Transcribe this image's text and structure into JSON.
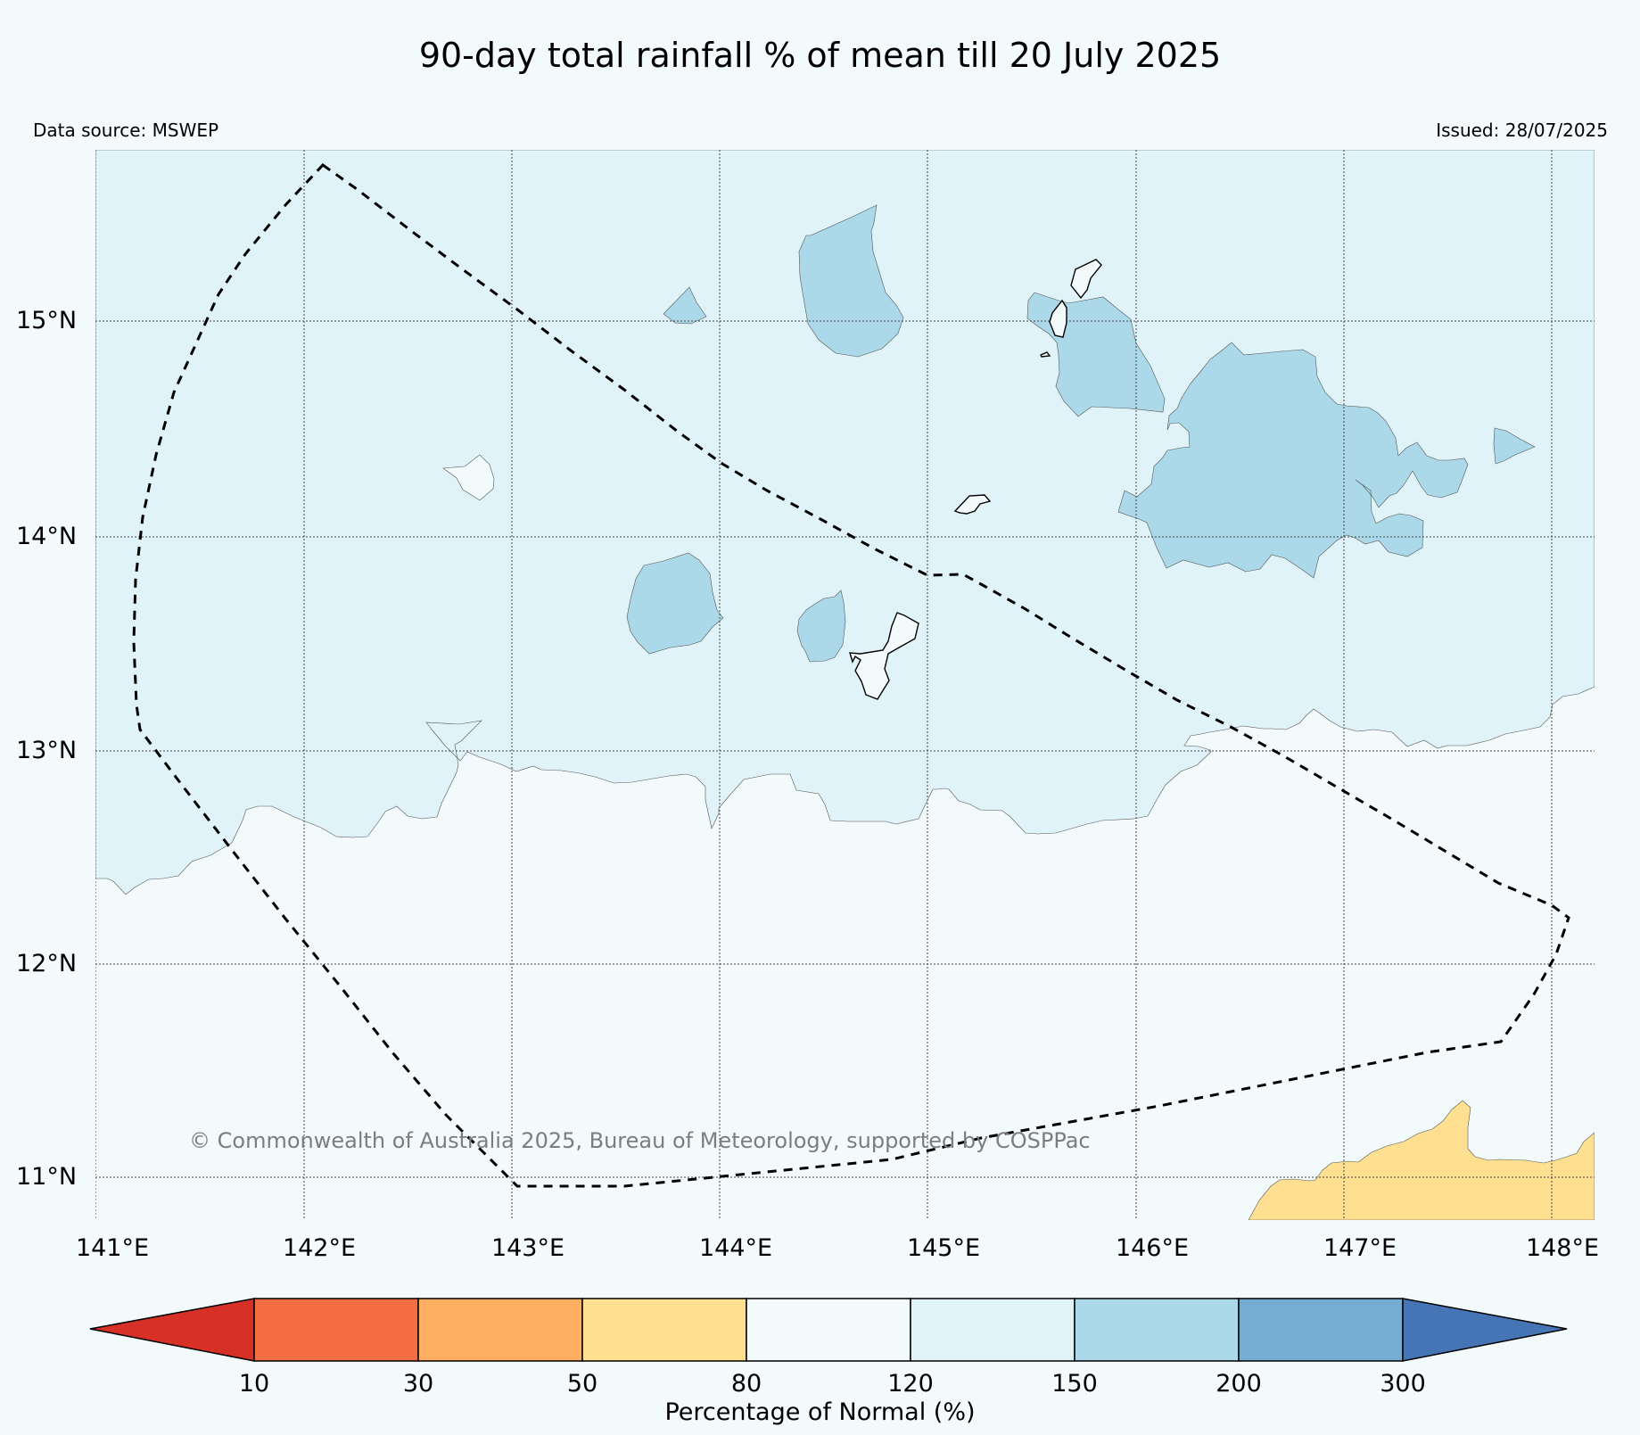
{
  "title": "90-day total rainfall % of mean till 20 July 2025",
  "data_source": "Data source: MSWEP",
  "issued": "Issued: 28/07/2025",
  "copyright": "© Commonwealth of Australia 2025, Bureau of Meteorology, supported by COSPPac",
  "lat_labels": [
    "15°N",
    "14°N",
    "13°N",
    "12°N",
    "11°N"
  ],
  "lon_labels": [
    "141°E",
    "142°E",
    "143°E",
    "144°E",
    "145°E",
    "146°E",
    "147°E",
    "148°E"
  ],
  "colorbar": {
    "label": "Percentage of Normal (%)",
    "ticks": [
      "10",
      "30",
      "50",
      "80",
      "120",
      "150",
      "200",
      "300"
    ],
    "colors": {
      "below_10": "#d73027",
      "10_30": "#f46d43",
      "30_50": "#fdae61",
      "50_80": "#fee090",
      "80_120": "#f2fafc",
      "120_150": "#e0f3f8",
      "150_200": "#abd9e9",
      "200_300": "#74add1",
      "above_300": "#4575b4"
    }
  },
  "map": {
    "lon_range": [
      141,
      148.2
    ],
    "lat_range": [
      10.8,
      15.8
    ],
    "grid": true,
    "region_outline": "dashed polygon boundary"
  }
}
